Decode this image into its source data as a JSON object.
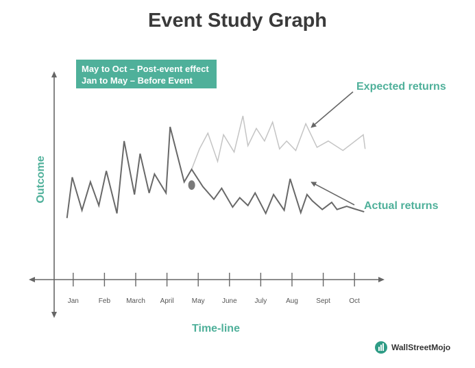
{
  "chart_data": {
    "type": "line",
    "title": "Event Study Graph",
    "xlabel": "Time-line",
    "ylabel": "Outcome",
    "legend_lines": [
      "May to Oct – Post-event effect",
      "Jan to May – Before Event"
    ],
    "categories": [
      "Jan",
      "Feb",
      "March",
      "April",
      "May",
      "June",
      "July",
      "Aug",
      "Sept",
      "Oct"
    ],
    "x_range": [
      0.5,
      10.5
    ],
    "y_range": [
      0,
      10
    ],
    "event_marker": {
      "x": 4.79,
      "y": 4.7
    },
    "series": [
      {
        "name": "Actual returns",
        "color": "#686868",
        "x": [
          0.8,
          0.97,
          1.28,
          1.55,
          1.82,
          2.06,
          2.4,
          2.63,
          2.96,
          3.14,
          3.43,
          3.6,
          3.97,
          4.1,
          4.55,
          4.79,
          5.15,
          5.5,
          5.75,
          6.1,
          6.33,
          6.59,
          6.82,
          7.16,
          7.41,
          7.75,
          7.94,
          8.28,
          8.48,
          8.65,
          8.97,
          9.27,
          9.44,
          9.75,
          9.98,
          10.31
        ],
        "y": [
          2.6,
          5.2,
          3.1,
          4.9,
          3.4,
          5.6,
          2.9,
          7.5,
          4.1,
          6.7,
          4.2,
          5.4,
          4.2,
          8.4,
          4.9,
          5.7,
          4.6,
          3.8,
          4.5,
          3.3,
          3.9,
          3.4,
          4.2,
          2.9,
          4.1,
          3.1,
          5.1,
          2.95,
          4.1,
          3.7,
          3.15,
          3.6,
          3.15,
          3.35,
          3.2,
          3.0
        ]
      },
      {
        "name": "Expected returns",
        "color": "#c4c4c4",
        "x": [
          4.79,
          5.04,
          5.31,
          5.62,
          5.81,
          6.15,
          6.43,
          6.59,
          6.86,
          7.12,
          7.38,
          7.6,
          7.83,
          8.12,
          8.44,
          8.8,
          9.16,
          9.63,
          10.28,
          10.34
        ],
        "y": [
          5.7,
          7.0,
          8.0,
          6.2,
          7.9,
          6.8,
          9.1,
          7.2,
          8.3,
          7.5,
          8.7,
          7.0,
          7.5,
          6.9,
          8.6,
          7.1,
          7.5,
          6.9,
          7.9,
          7.0
        ]
      }
    ],
    "annotations": [
      {
        "text": "Expected returns",
        "points_to": {
          "x": 8.53,
          "y": 8.5
        }
      },
      {
        "text": "Actual returns",
        "points_to": {
          "x": 8.53,
          "y": 4.8
        }
      }
    ]
  },
  "brand": {
    "name": "WallStreetMojo"
  },
  "colors": {
    "accent": "#4fb09a",
    "axis": "#666666"
  }
}
